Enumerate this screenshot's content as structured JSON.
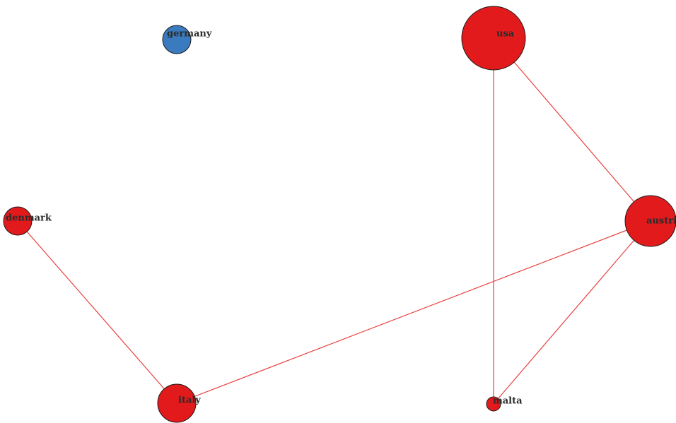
{
  "nodes": [
    {
      "id": "germany",
      "label": "germany",
      "color": "#3a7bbf",
      "size": 1
    },
    {
      "id": "usa",
      "label": "usa",
      "color": "#e31a1c",
      "size": 4
    },
    {
      "id": "denmark",
      "label": "denmark",
      "color": "#e31a1c",
      "size": 1
    },
    {
      "id": "austria",
      "label": "austri",
      "color": "#e31a1c",
      "size": 3
    },
    {
      "id": "italy",
      "label": "italy",
      "color": "#e31a1c",
      "size": 2
    },
    {
      "id": "malta",
      "label": "malta",
      "color": "#e31a1c",
      "size": 0
    }
  ],
  "edges": [
    {
      "source": "usa",
      "target": "malta"
    },
    {
      "source": "usa",
      "target": "austria"
    },
    {
      "source": "austria",
      "target": "italy"
    },
    {
      "source": "austria",
      "target": "malta"
    },
    {
      "source": "denmark",
      "target": "italy"
    }
  ],
  "edge_color": "#e8413f"
}
